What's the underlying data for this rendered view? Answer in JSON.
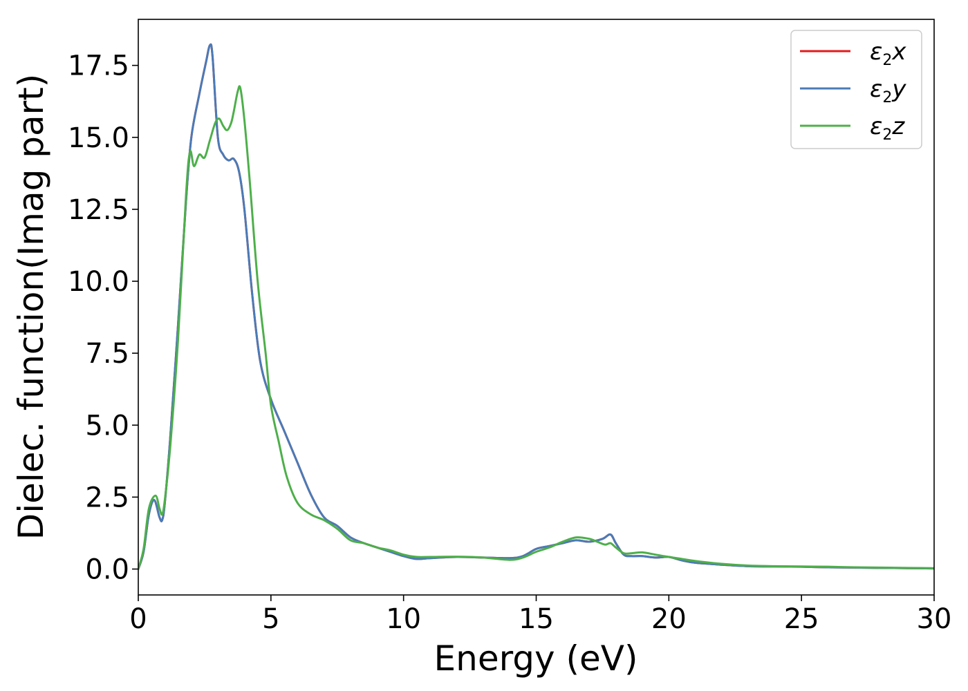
{
  "chart_data": {
    "type": "line",
    "title": "",
    "xlabel": "Energy (eV)",
    "ylabel": "Dielec. function(Imag part)",
    "xlim": [
      0,
      30
    ],
    "ylim": [
      -0.9,
      19.1
    ],
    "xticks": [
      0,
      5,
      10,
      15,
      20,
      25,
      30
    ],
    "xtick_labels": [
      "0",
      "5",
      "10",
      "15",
      "20",
      "25",
      "30"
    ],
    "yticks": [
      0.0,
      2.5,
      5.0,
      7.5,
      10.0,
      12.5,
      15.0,
      17.5
    ],
    "ytick_labels": [
      "0.0",
      "2.5",
      "5.0",
      "7.5",
      "10.0",
      "12.5",
      "15.0",
      "17.5"
    ],
    "grid": false,
    "legend_position": "top-right",
    "series": [
      {
        "name": "ε₂x",
        "legend_main": "ε",
        "legend_sub": "2",
        "legend_var": "x",
        "color": "#e41a1c",
        "x": [
          0,
          0.2,
          0.4,
          0.6,
          0.8,
          0.9,
          1.0,
          1.2,
          1.5,
          1.8,
          2.0,
          2.3,
          2.55,
          2.7,
          2.8,
          3.0,
          3.2,
          3.4,
          3.6,
          3.8,
          4.0,
          4.3,
          4.6,
          5.0,
          5.5,
          6.0,
          6.5,
          7.0,
          7.5,
          8.0,
          8.5,
          9.0,
          9.5,
          10.0,
          10.5,
          11.0,
          12.0,
          13.0,
          14.0,
          14.5,
          15.0,
          15.5,
          16.0,
          16.5,
          17.0,
          17.5,
          17.8,
          18.0,
          18.3,
          18.6,
          19.0,
          19.5,
          20.0,
          20.5,
          21.0,
          22.0,
          23.0,
          24.0,
          25.0,
          26.0,
          27.0,
          28.0,
          29.0,
          30.0
        ],
        "y": [
          0.0,
          0.6,
          1.9,
          2.4,
          1.8,
          1.7,
          2.3,
          4.5,
          8.5,
          12.8,
          15.0,
          16.5,
          17.6,
          18.2,
          17.8,
          15.0,
          14.4,
          14.2,
          14.25,
          13.8,
          12.5,
          9.5,
          7.2,
          5.9,
          4.8,
          3.7,
          2.6,
          1.8,
          1.5,
          1.1,
          0.9,
          0.75,
          0.6,
          0.45,
          0.35,
          0.38,
          0.42,
          0.4,
          0.38,
          0.45,
          0.7,
          0.8,
          0.9,
          1.0,
          0.95,
          1.05,
          1.2,
          0.9,
          0.5,
          0.45,
          0.45,
          0.4,
          0.42,
          0.3,
          0.22,
          0.15,
          0.1,
          0.09,
          0.08,
          0.06,
          0.05,
          0.04,
          0.03,
          0.02
        ]
      },
      {
        "name": "ε₂y",
        "legend_main": "ε",
        "legend_sub": "2",
        "legend_var": "y",
        "color": "#4a7bb7",
        "x": [
          0,
          0.2,
          0.4,
          0.6,
          0.8,
          0.9,
          1.0,
          1.2,
          1.5,
          1.8,
          2.0,
          2.3,
          2.55,
          2.7,
          2.8,
          3.0,
          3.2,
          3.4,
          3.6,
          3.8,
          4.0,
          4.3,
          4.6,
          5.0,
          5.5,
          6.0,
          6.5,
          7.0,
          7.5,
          8.0,
          8.5,
          9.0,
          9.5,
          10.0,
          10.5,
          11.0,
          12.0,
          13.0,
          14.0,
          14.5,
          15.0,
          15.5,
          16.0,
          16.5,
          17.0,
          17.5,
          17.8,
          18.0,
          18.3,
          18.6,
          19.0,
          19.5,
          20.0,
          20.5,
          21.0,
          22.0,
          23.0,
          24.0,
          25.0,
          26.0,
          27.0,
          28.0,
          29.0,
          30.0
        ],
        "y": [
          0.0,
          0.6,
          1.9,
          2.4,
          1.8,
          1.7,
          2.3,
          4.5,
          8.5,
          12.8,
          15.0,
          16.5,
          17.6,
          18.2,
          17.8,
          15.0,
          14.4,
          14.2,
          14.25,
          13.8,
          12.5,
          9.5,
          7.2,
          5.9,
          4.8,
          3.7,
          2.6,
          1.8,
          1.5,
          1.1,
          0.9,
          0.75,
          0.6,
          0.45,
          0.35,
          0.38,
          0.42,
          0.4,
          0.38,
          0.45,
          0.7,
          0.8,
          0.9,
          1.0,
          0.95,
          1.05,
          1.2,
          0.9,
          0.5,
          0.45,
          0.45,
          0.4,
          0.42,
          0.3,
          0.22,
          0.15,
          0.1,
          0.09,
          0.08,
          0.06,
          0.05,
          0.04,
          0.03,
          0.02
        ]
      },
      {
        "name": "ε₂z",
        "legend_main": "ε",
        "legend_sub": "2",
        "legend_var": "z",
        "color": "#4daf4a",
        "x": [
          0,
          0.2,
          0.4,
          0.65,
          0.8,
          0.9,
          1.0,
          1.2,
          1.5,
          1.8,
          1.95,
          2.1,
          2.3,
          2.5,
          2.7,
          2.9,
          3.05,
          3.2,
          3.35,
          3.5,
          3.6,
          3.75,
          3.85,
          4.0,
          4.2,
          4.5,
          4.8,
          5.0,
          5.3,
          5.6,
          6.0,
          6.5,
          7.0,
          7.5,
          8.0,
          8.5,
          9.0,
          9.5,
          10.0,
          10.5,
          11.0,
          12.0,
          13.0,
          14.0,
          14.5,
          15.0,
          15.5,
          16.0,
          16.5,
          17.0,
          17.3,
          17.6,
          17.8,
          18.0,
          18.3,
          18.6,
          19.0,
          19.5,
          20.0,
          20.5,
          21.0,
          22.0,
          23.0,
          24.0,
          25.0,
          26.0,
          27.0,
          28.0,
          29.0,
          30.0
        ],
        "y": [
          0.0,
          0.7,
          2.1,
          2.55,
          2.1,
          1.9,
          2.4,
          4.2,
          8.0,
          13.0,
          14.5,
          14.0,
          14.4,
          14.3,
          14.9,
          15.5,
          15.65,
          15.4,
          15.25,
          15.5,
          15.9,
          16.6,
          16.7,
          15.6,
          13.5,
          10.0,
          7.5,
          5.7,
          4.4,
          3.2,
          2.3,
          1.9,
          1.7,
          1.4,
          1.0,
          0.9,
          0.75,
          0.65,
          0.5,
          0.42,
          0.42,
          0.43,
          0.4,
          0.32,
          0.4,
          0.6,
          0.75,
          0.95,
          1.1,
          1.05,
          0.95,
          0.85,
          0.9,
          0.75,
          0.55,
          0.55,
          0.58,
          0.5,
          0.42,
          0.35,
          0.28,
          0.18,
          0.12,
          0.1,
          0.09,
          0.08,
          0.06,
          0.05,
          0.04,
          0.03
        ]
      }
    ]
  }
}
